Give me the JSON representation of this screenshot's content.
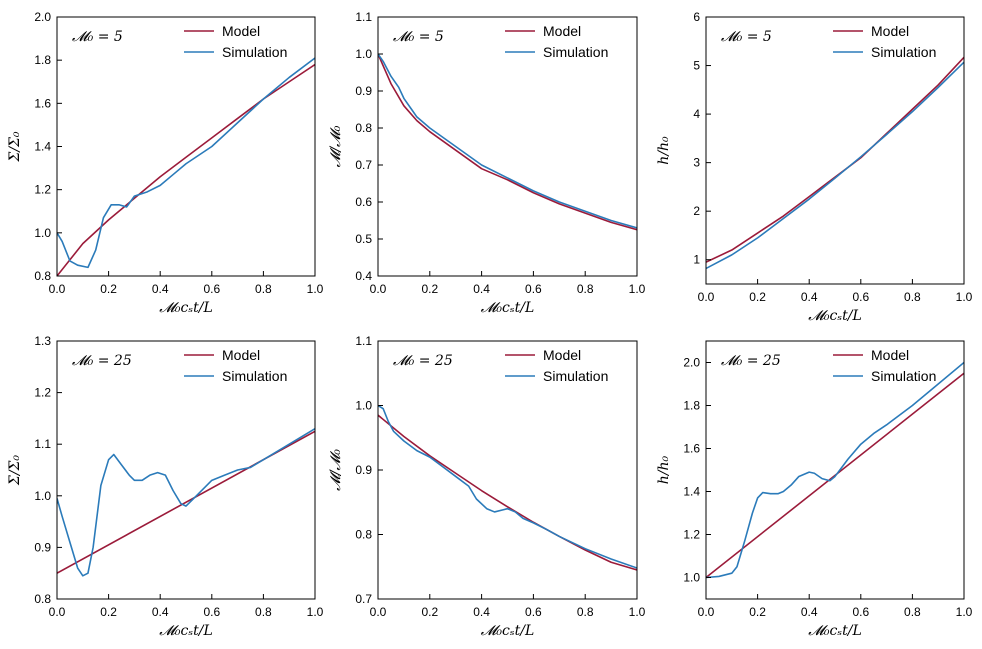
{
  "colors": {
    "model": "#9b1b3a",
    "simulation": "#2b7bba"
  },
  "chart_data": [
    {
      "type": "line",
      "panel_label": "𝓜₀ = 5",
      "xlabel": "𝓜₀cₛt/L",
      "ylabel": "Σ/Σ₀",
      "xlim": [
        0,
        1
      ],
      "ylim": [
        0.8,
        2.0
      ],
      "xticks": [
        0,
        0.2,
        0.4,
        0.6,
        0.8,
        1.0
      ],
      "xtick_labels": [
        "0.0",
        "0.2",
        "0.4",
        "0.6",
        "0.8",
        "1.0"
      ],
      "yticks": [
        0.8,
        1.0,
        1.2,
        1.4,
        1.6,
        1.8,
        2.0
      ],
      "ytick_labels": [
        "0.8",
        "1.0",
        "1.2",
        "1.4",
        "1.6",
        "1.8",
        "2.0"
      ],
      "legend": [
        "Model",
        "Simulation"
      ],
      "series": [
        {
          "name": "Model",
          "x": [
            0,
            0.1,
            0.2,
            0.3,
            0.4,
            0.5,
            0.6,
            0.7,
            0.8,
            0.9,
            1.0
          ],
          "y": [
            0.8,
            0.95,
            1.06,
            1.16,
            1.26,
            1.35,
            1.44,
            1.53,
            1.62,
            1.7,
            1.78
          ]
        },
        {
          "name": "Simulation",
          "x": [
            0,
            0.02,
            0.05,
            0.08,
            0.12,
            0.15,
            0.18,
            0.21,
            0.24,
            0.27,
            0.3,
            0.35,
            0.4,
            0.45,
            0.5,
            0.55,
            0.6,
            0.7,
            0.8,
            0.9,
            1.0
          ],
          "y": [
            1.0,
            0.96,
            0.87,
            0.85,
            0.84,
            0.92,
            1.07,
            1.13,
            1.13,
            1.12,
            1.17,
            1.19,
            1.22,
            1.27,
            1.32,
            1.36,
            1.4,
            1.51,
            1.62,
            1.72,
            1.81
          ]
        }
      ]
    },
    {
      "type": "line",
      "panel_label": "𝓜₀ = 5",
      "xlabel": "𝓜₀cₛt/L",
      "ylabel": "𝓜/𝓜₀",
      "xlim": [
        0,
        1
      ],
      "ylim": [
        0.4,
        1.1
      ],
      "xticks": [
        0,
        0.2,
        0.4,
        0.6,
        0.8,
        1.0
      ],
      "xtick_labels": [
        "0.0",
        "0.2",
        "0.4",
        "0.6",
        "0.8",
        "1.0"
      ],
      "yticks": [
        0.4,
        0.5,
        0.6,
        0.7,
        0.8,
        0.9,
        1.0,
        1.1
      ],
      "ytick_labels": [
        "0.4",
        "0.5",
        "0.6",
        "0.7",
        "0.8",
        "0.9",
        "1.0",
        "1.1"
      ],
      "legend": [
        "Model",
        "Simulation"
      ],
      "series": [
        {
          "name": "Model",
          "x": [
            0,
            0.05,
            0.1,
            0.15,
            0.2,
            0.3,
            0.4,
            0.5,
            0.6,
            0.7,
            0.8,
            0.9,
            1.0
          ],
          "y": [
            1.0,
            0.92,
            0.86,
            0.82,
            0.79,
            0.74,
            0.69,
            0.66,
            0.625,
            0.595,
            0.57,
            0.545,
            0.525
          ]
        },
        {
          "name": "Simulation",
          "x": [
            0,
            0.02,
            0.05,
            0.08,
            0.1,
            0.13,
            0.15,
            0.2,
            0.3,
            0.4,
            0.5,
            0.6,
            0.7,
            0.8,
            0.9,
            1.0
          ],
          "y": [
            1.0,
            0.98,
            0.94,
            0.91,
            0.88,
            0.85,
            0.83,
            0.8,
            0.75,
            0.7,
            0.665,
            0.63,
            0.6,
            0.575,
            0.55,
            0.53
          ]
        }
      ]
    },
    {
      "type": "line",
      "panel_label": "𝓜₀ = 5",
      "xlabel": "𝓜₀cₛt/L",
      "ylabel": "h/h₀",
      "xlim": [
        0,
        1
      ],
      "ylim": [
        0.5,
        6
      ],
      "xticks": [
        0,
        0.2,
        0.4,
        0.6,
        0.8,
        1.0
      ],
      "xtick_labels": [
        "0.0",
        "0.2",
        "0.4",
        "0.6",
        "0.8",
        "1.0"
      ],
      "yticks": [
        1,
        2,
        3,
        4,
        5,
        6
      ],
      "ytick_labels": [
        "1",
        "2",
        "3",
        "4",
        "5",
        "6"
      ],
      "legend": [
        "Model",
        "Simulation"
      ],
      "series": [
        {
          "name": "Model",
          "x": [
            0,
            0.1,
            0.2,
            0.3,
            0.4,
            0.5,
            0.6,
            0.7,
            0.8,
            0.9,
            1.0
          ],
          "y": [
            0.95,
            1.2,
            1.55,
            1.9,
            2.3,
            2.7,
            3.1,
            3.6,
            4.1,
            4.6,
            5.17
          ]
        },
        {
          "name": "Simulation",
          "x": [
            0,
            0.1,
            0.2,
            0.3,
            0.4,
            0.5,
            0.6,
            0.7,
            0.8,
            0.9,
            1.0
          ],
          "y": [
            0.82,
            1.1,
            1.45,
            1.85,
            2.25,
            2.68,
            3.12,
            3.58,
            4.05,
            4.55,
            5.07
          ]
        }
      ]
    },
    {
      "type": "line",
      "panel_label": "𝓜₀ = 25",
      "xlabel": "𝓜₀cₛt/L",
      "ylabel": "Σ/Σ₀",
      "xlim": [
        0,
        1
      ],
      "ylim": [
        0.8,
        1.3
      ],
      "xticks": [
        0,
        0.2,
        0.4,
        0.6,
        0.8,
        1.0
      ],
      "xtick_labels": [
        "0.0",
        "0.2",
        "0.4",
        "0.6",
        "0.8",
        "1.0"
      ],
      "yticks": [
        0.8,
        0.9,
        1.0,
        1.1,
        1.2,
        1.3
      ],
      "ytick_labels": [
        "0.8",
        "0.9",
        "1.0",
        "1.1",
        "1.2",
        "1.3"
      ],
      "legend": [
        "Model",
        "Simulation"
      ],
      "series": [
        {
          "name": "Model",
          "x": [
            0,
            1.0
          ],
          "y": [
            0.85,
            1.125
          ]
        },
        {
          "name": "Simulation",
          "x": [
            0,
            0.02,
            0.05,
            0.08,
            0.1,
            0.12,
            0.14,
            0.17,
            0.2,
            0.22,
            0.25,
            0.28,
            0.3,
            0.33,
            0.36,
            0.39,
            0.42,
            0.45,
            0.48,
            0.5,
            0.53,
            0.56,
            0.6,
            0.65,
            0.7,
            0.75,
            0.8,
            0.85,
            0.9,
            0.95,
            1.0
          ],
          "y": [
            0.995,
            0.96,
            0.91,
            0.86,
            0.845,
            0.85,
            0.9,
            1.02,
            1.07,
            1.08,
            1.06,
            1.04,
            1.03,
            1.03,
            1.04,
            1.045,
            1.04,
            1.01,
            0.985,
            0.98,
            0.995,
            1.01,
            1.03,
            1.04,
            1.05,
            1.055,
            1.07,
            1.085,
            1.1,
            1.115,
            1.13
          ]
        }
      ]
    },
    {
      "type": "line",
      "panel_label": "𝓜₀ = 25",
      "xlabel": "𝓜₀cₛt/L",
      "ylabel": "𝓜/𝓜₀",
      "xlim": [
        0,
        1
      ],
      "ylim": [
        0.7,
        1.1
      ],
      "xticks": [
        0,
        0.2,
        0.4,
        0.6,
        0.8,
        1.0
      ],
      "xtick_labels": [
        "0.0",
        "0.2",
        "0.4",
        "0.6",
        "0.8",
        "1.0"
      ],
      "yticks": [
        0.7,
        0.8,
        0.9,
        1.0,
        1.1
      ],
      "ytick_labels": [
        "0.7",
        "0.8",
        "0.9",
        "1.0",
        "1.1"
      ],
      "legend": [
        "Model",
        "Simulation"
      ],
      "series": [
        {
          "name": "Model",
          "x": [
            0,
            0.1,
            0.2,
            0.3,
            0.4,
            0.5,
            0.6,
            0.7,
            0.8,
            0.9,
            1.0
          ],
          "y": [
            0.985,
            0.952,
            0.922,
            0.895,
            0.868,
            0.843,
            0.819,
            0.797,
            0.776,
            0.757,
            0.745
          ]
        },
        {
          "name": "Simulation",
          "x": [
            0,
            0.02,
            0.04,
            0.06,
            0.1,
            0.15,
            0.2,
            0.25,
            0.3,
            0.35,
            0.38,
            0.42,
            0.45,
            0.48,
            0.5,
            0.53,
            0.56,
            0.6,
            0.65,
            0.7,
            0.8,
            0.9,
            1.0
          ],
          "y": [
            1.0,
            0.995,
            0.975,
            0.96,
            0.945,
            0.93,
            0.92,
            0.905,
            0.89,
            0.875,
            0.855,
            0.84,
            0.835,
            0.838,
            0.84,
            0.835,
            0.825,
            0.818,
            0.808,
            0.797,
            0.778,
            0.762,
            0.748
          ]
        }
      ]
    },
    {
      "type": "line",
      "panel_label": "𝓜₀ = 25",
      "xlabel": "𝓜₀cₛt/L",
      "ylabel": "h/h₀",
      "xlim": [
        0,
        1
      ],
      "ylim": [
        0.9,
        2.1
      ],
      "xticks": [
        0,
        0.2,
        0.4,
        0.6,
        0.8,
        1.0
      ],
      "xtick_labels": [
        "0.0",
        "0.2",
        "0.4",
        "0.6",
        "0.8",
        "1.0"
      ],
      "yticks": [
        1.0,
        1.2,
        1.4,
        1.6,
        1.8,
        2.0
      ],
      "ytick_labels": [
        "1.0",
        "1.2",
        "1.4",
        "1.6",
        "1.8",
        "2.0"
      ],
      "legend": [
        "Model",
        "Simulation"
      ],
      "series": [
        {
          "name": "Model",
          "x": [
            0,
            1.0
          ],
          "y": [
            1.0,
            1.95
          ]
        },
        {
          "name": "Simulation",
          "x": [
            0,
            0.05,
            0.1,
            0.12,
            0.15,
            0.18,
            0.2,
            0.22,
            0.25,
            0.28,
            0.3,
            0.33,
            0.36,
            0.4,
            0.42,
            0.45,
            0.48,
            0.5,
            0.55,
            0.6,
            0.65,
            0.7,
            0.8,
            0.9,
            1.0
          ],
          "y": [
            1.0,
            1.005,
            1.02,
            1.05,
            1.17,
            1.3,
            1.37,
            1.395,
            1.39,
            1.39,
            1.4,
            1.43,
            1.47,
            1.49,
            1.485,
            1.46,
            1.45,
            1.47,
            1.55,
            1.62,
            1.67,
            1.71,
            1.8,
            1.9,
            2.0
          ]
        }
      ]
    }
  ]
}
